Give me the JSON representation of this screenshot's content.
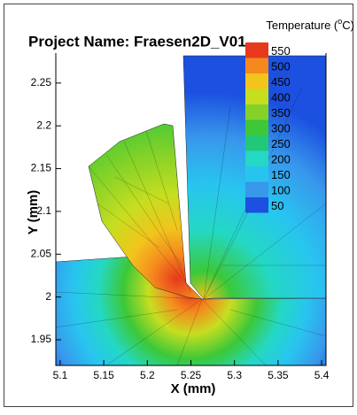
{
  "chart_data": {
    "type": "contour",
    "title": "Project Name: Fraesen2D_V01",
    "x_label": "X (mm)",
    "y_label": "Y (mm)",
    "xlim": [
      5.095,
      5.405
    ],
    "ylim": [
      1.92,
      2.285
    ],
    "xticks": [
      5.1,
      5.15,
      5.2,
      5.25,
      5.3,
      5.35,
      5.4
    ],
    "yticks": [
      1.95,
      2,
      2.05,
      2.1,
      2.15,
      2.2,
      2.25
    ],
    "colorbar_label": [
      "Temperature (",
      "o",
      "C)"
    ],
    "levels": [
      550,
      500,
      450,
      400,
      350,
      300,
      250,
      200,
      150,
      100,
      50
    ],
    "colors": [
      "#e8381c",
      "#f48a1e",
      "#f2c41c",
      "#c6de20",
      "#84d228",
      "#3cc838",
      "#20c878",
      "#24d8c4",
      "#28c4f0",
      "#3898ec",
      "#1c50e0"
    ]
  }
}
